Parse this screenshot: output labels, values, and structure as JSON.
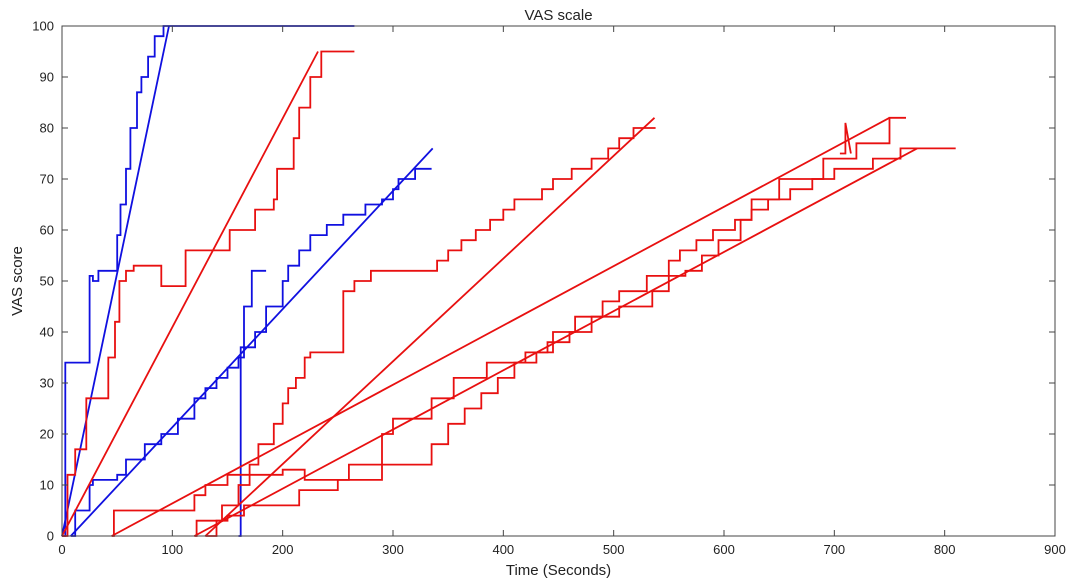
{
  "chart_data": {
    "type": "line",
    "title": "VAS scale",
    "xlabel": "Time (Seconds)",
    "ylabel": "VAS score",
    "xlim": [
      0,
      900
    ],
    "ylim": [
      0,
      100
    ],
    "xticks": [
      0,
      100,
      200,
      300,
      400,
      500,
      600,
      700,
      800,
      900
    ],
    "yticks": [
      0,
      10,
      20,
      30,
      40,
      50,
      60,
      70,
      80,
      90,
      100
    ],
    "colors": {
      "blue": "#1010e0",
      "red": "#e81010",
      "axis": "#444444",
      "text": "#222222"
    },
    "series": [
      {
        "color": "blue",
        "x": [
          0,
          3,
          3,
          25,
          25,
          28,
          28,
          33,
          33,
          50,
          50,
          53,
          53,
          58,
          58,
          62,
          62,
          68,
          68,
          72,
          72,
          78,
          78,
          84,
          84,
          92,
          92,
          96,
          96,
          265
        ],
        "y": [
          0,
          0,
          34,
          34,
          51,
          51,
          50,
          50,
          52,
          52,
          59,
          59,
          65,
          65,
          72,
          72,
          80,
          80,
          87,
          87,
          90,
          90,
          94,
          94,
          98,
          98,
          100,
          100,
          100,
          100
        ]
      },
      {
        "color": "blue",
        "x": [
          0,
          97
        ],
        "y": [
          0,
          100
        ]
      },
      {
        "color": "blue",
        "x": [
          8,
          12,
          12,
          25,
          25,
          28,
          28,
          50,
          50,
          58,
          58,
          75,
          75,
          90,
          90,
          105,
          105,
          120,
          120,
          130,
          130,
          140,
          140,
          150,
          150,
          160,
          160,
          165,
          165,
          175,
          175,
          185,
          185,
          200,
          200,
          205,
          205,
          215,
          215,
          225,
          225,
          240,
          240,
          255,
          255,
          275,
          275,
          290,
          290,
          300,
          300,
          305,
          305,
          320,
          320,
          335
        ],
        "y": [
          0,
          0,
          5,
          5,
          10,
          10,
          11,
          11,
          12,
          12,
          15,
          15,
          18,
          18,
          20,
          20,
          23,
          23,
          27,
          27,
          29,
          29,
          31,
          31,
          33,
          33,
          35,
          35,
          37,
          37,
          40,
          40,
          45,
          45,
          50,
          50,
          53,
          53,
          56,
          56,
          59,
          59,
          61,
          61,
          63,
          63,
          65,
          65,
          66,
          66,
          68,
          68,
          70,
          70,
          72,
          72
        ]
      },
      {
        "color": "blue",
        "x": [
          8,
          336
        ],
        "y": [
          0,
          76
        ]
      },
      {
        "color": "blue",
        "x": [
          160,
          162,
          162,
          165,
          165,
          172,
          172,
          185
        ],
        "y": [
          0,
          0,
          37,
          37,
          45,
          45,
          52,
          52
        ]
      },
      {
        "color": "red",
        "x": [
          0,
          5,
          5,
          12,
          12,
          22,
          22,
          42,
          42,
          48,
          48,
          52,
          52,
          58,
          58,
          65,
          65,
          90,
          90,
          112,
          112,
          148,
          148,
          152,
          152,
          168,
          168,
          175,
          175,
          192,
          192,
          195,
          195,
          210,
          210,
          215,
          215,
          225,
          225,
          235,
          235,
          265
        ],
        "y": [
          0,
          0,
          12,
          12,
          17,
          17,
          27,
          27,
          35,
          35,
          42,
          42,
          50,
          50,
          52,
          52,
          53,
          53,
          49,
          49,
          56,
          56,
          56,
          56,
          60,
          60,
          60,
          60,
          64,
          64,
          66,
          66,
          72,
          72,
          78,
          78,
          84,
          84,
          90,
          90,
          95,
          95
        ]
      },
      {
        "color": "red",
        "x": [
          0,
          232
        ],
        "y": [
          0,
          95
        ]
      },
      {
        "color": "red",
        "x": [
          130,
          140,
          140,
          145,
          145,
          160,
          160,
          170,
          170,
          178,
          178,
          192,
          192,
          200,
          200,
          205,
          205,
          212,
          212,
          220,
          220,
          225,
          225,
          255,
          255,
          265,
          265,
          280,
          280,
          340,
          340,
          350,
          350,
          362,
          362,
          375,
          375,
          388,
          388,
          400,
          400,
          410,
          410,
          435,
          435,
          445,
          445,
          462,
          462,
          480,
          480,
          495,
          495,
          505,
          505,
          518,
          518,
          538
        ],
        "y": [
          0,
          0,
          3,
          3,
          6,
          6,
          10,
          10,
          14,
          14,
          18,
          18,
          22,
          22,
          26,
          26,
          29,
          29,
          31,
          31,
          35,
          35,
          36,
          36,
          48,
          48,
          50,
          50,
          52,
          52,
          54,
          54,
          56,
          56,
          58,
          58,
          60,
          60,
          62,
          62,
          64,
          64,
          66,
          66,
          68,
          68,
          70,
          70,
          72,
          72,
          74,
          74,
          76,
          76,
          78,
          78,
          80,
          80
        ]
      },
      {
        "color": "red",
        "x": [
          130,
          537
        ],
        "y": [
          0,
          82
        ]
      },
      {
        "color": "red",
        "x": [
          45,
          47,
          47,
          85,
          85,
          120,
          120,
          130,
          130,
          150,
          150,
          200,
          200,
          220,
          220,
          260,
          260,
          290,
          290,
          300,
          300,
          335,
          335,
          355,
          355,
          385,
          385,
          420,
          420,
          440,
          440,
          460,
          460,
          480,
          480,
          505,
          505,
          535,
          535,
          550,
          550,
          565,
          565,
          580,
          580,
          595,
          595,
          615,
          615,
          625,
          625,
          650,
          650,
          690,
          690,
          720,
          720,
          750,
          750,
          765
        ],
        "y": [
          0,
          0,
          5,
          5,
          5,
          5,
          8,
          8,
          10,
          10,
          12,
          12,
          13,
          13,
          11,
          11,
          14,
          14,
          20,
          20,
          23,
          23,
          27,
          27,
          31,
          31,
          34,
          34,
          36,
          36,
          38,
          38,
          40,
          40,
          43,
          43,
          45,
          45,
          48,
          48,
          51,
          51,
          52,
          52,
          55,
          55,
          58,
          58,
          62,
          62,
          66,
          66,
          70,
          70,
          74,
          74,
          77,
          77,
          82,
          82
        ]
      },
      {
        "color": "red",
        "x": [
          45,
          750
        ],
        "y": [
          0,
          82
        ]
      },
      {
        "color": "red",
        "x": [
          120,
          122,
          122,
          150,
          150,
          165,
          165,
          215,
          215,
          250,
          250,
          290,
          290,
          335,
          335,
          350,
          350,
          365,
          365,
          380,
          380,
          395,
          395,
          410,
          410,
          430,
          430,
          445,
          445,
          465,
          465,
          490,
          490,
          505,
          505,
          530,
          530,
          550,
          550,
          560,
          560,
          575,
          575,
          590,
          590,
          610,
          610,
          625,
          625,
          640,
          640,
          660,
          660,
          680,
          680,
          700,
          700,
          735,
          735,
          760,
          760,
          810
        ],
        "y": [
          0,
          0,
          3,
          3,
          4,
          4,
          6,
          6,
          9,
          9,
          11,
          11,
          14,
          14,
          18,
          18,
          22,
          22,
          25,
          25,
          28,
          28,
          31,
          31,
          34,
          34,
          36,
          36,
          40,
          40,
          43,
          43,
          46,
          46,
          48,
          48,
          51,
          51,
          54,
          54,
          56,
          56,
          58,
          58,
          60,
          60,
          62,
          62,
          64,
          64,
          66,
          66,
          68,
          68,
          70,
          70,
          72,
          72,
          74,
          74,
          76,
          76
        ]
      },
      {
        "color": "red",
        "x": [
          120,
          775
        ],
        "y": [
          0,
          76
        ]
      },
      {
        "color": "red",
        "x": [
          705,
          710,
          710,
          715
        ],
        "y": [
          75,
          75,
          81,
          75
        ]
      }
    ]
  }
}
